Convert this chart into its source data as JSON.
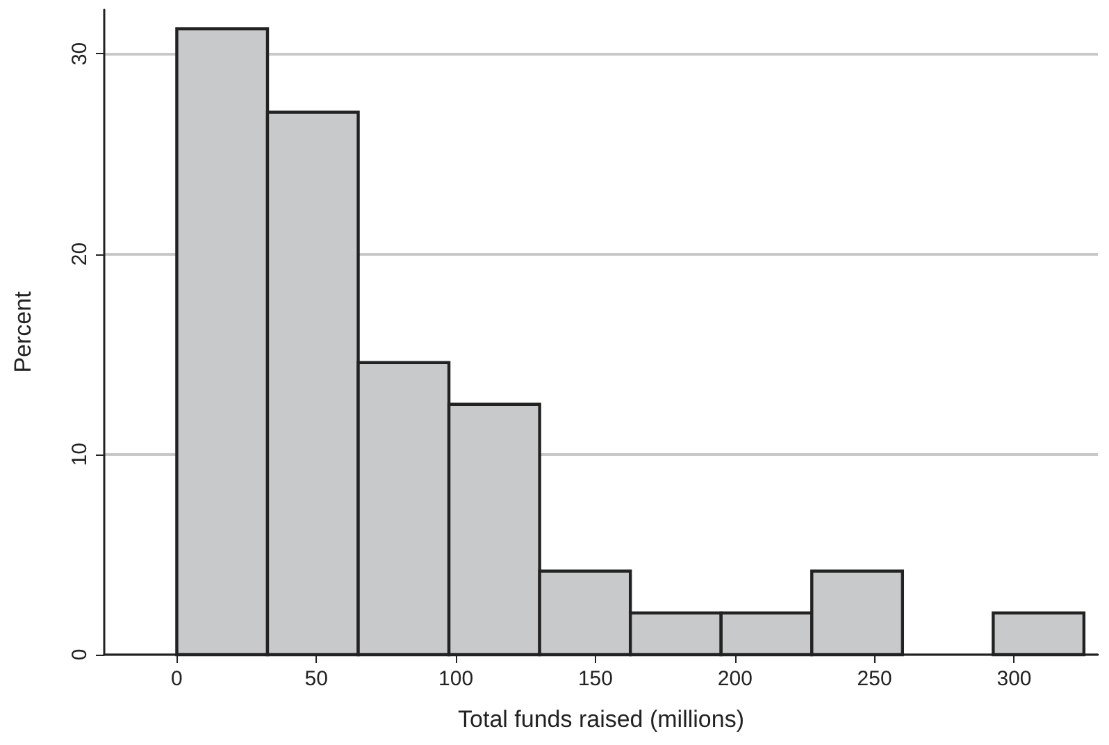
{
  "chart_data": {
    "type": "histogram",
    "xlabel": "Total funds raised (millions)",
    "ylabel": "Percent",
    "bins": [
      0,
      32.5,
      65,
      97.5,
      130,
      162.5,
      195,
      227.5,
      260,
      292.5,
      325
    ],
    "values": [
      31.25,
      27.08,
      14.58,
      12.5,
      4.17,
      2.08,
      2.08,
      4.17,
      0,
      2.08
    ],
    "color": "#c8c9cb",
    "xlim": [
      -26,
      330
    ],
    "xticks": [
      0,
      50,
      100,
      150,
      200,
      250,
      300
    ],
    "ylim": [
      0,
      32.2
    ],
    "yticks": [
      0,
      10,
      20,
      30
    ],
    "grid": "y"
  }
}
